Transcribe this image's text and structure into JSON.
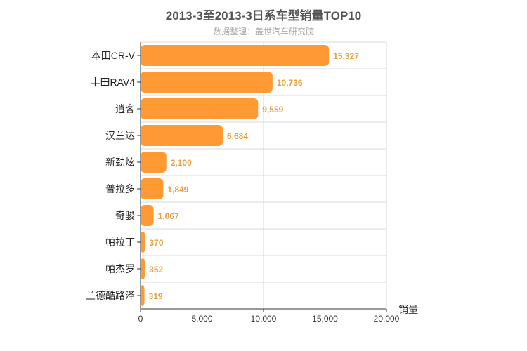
{
  "chart_data": {
    "type": "bar",
    "orientation": "horizontal",
    "title": "2013-3至2013-3日系车型销量TOP10",
    "subtitle": "数据整理：盖世汽车研究院",
    "xlabel": "销量",
    "ylabel": "",
    "xlim": [
      0,
      20000
    ],
    "x_ticks": [
      0,
      5000,
      10000,
      15000,
      20000
    ],
    "x_tick_labels": [
      "0",
      "5,000",
      "10,000",
      "15,000",
      "20,000"
    ],
    "grid": true,
    "categories": [
      "本田CR-V",
      "丰田RAV4",
      "逍客",
      "汉兰达",
      "新劲炫",
      "普拉多",
      "奇骏",
      "帕拉丁",
      "帕杰罗",
      "兰德酷路泽"
    ],
    "values": [
      15327,
      10736,
      9559,
      6684,
      2100,
      1849,
      1067,
      370,
      352,
      319
    ],
    "value_labels": [
      "15,327",
      "10,736",
      "9,559",
      "6,684",
      "2,100",
      "1,849",
      "1,067",
      "370",
      "352",
      "319"
    ],
    "colors": {
      "bar": "#ff9933",
      "value_label": "#e8a040",
      "grid": "#d8d8d8",
      "axis": "#333333"
    }
  }
}
